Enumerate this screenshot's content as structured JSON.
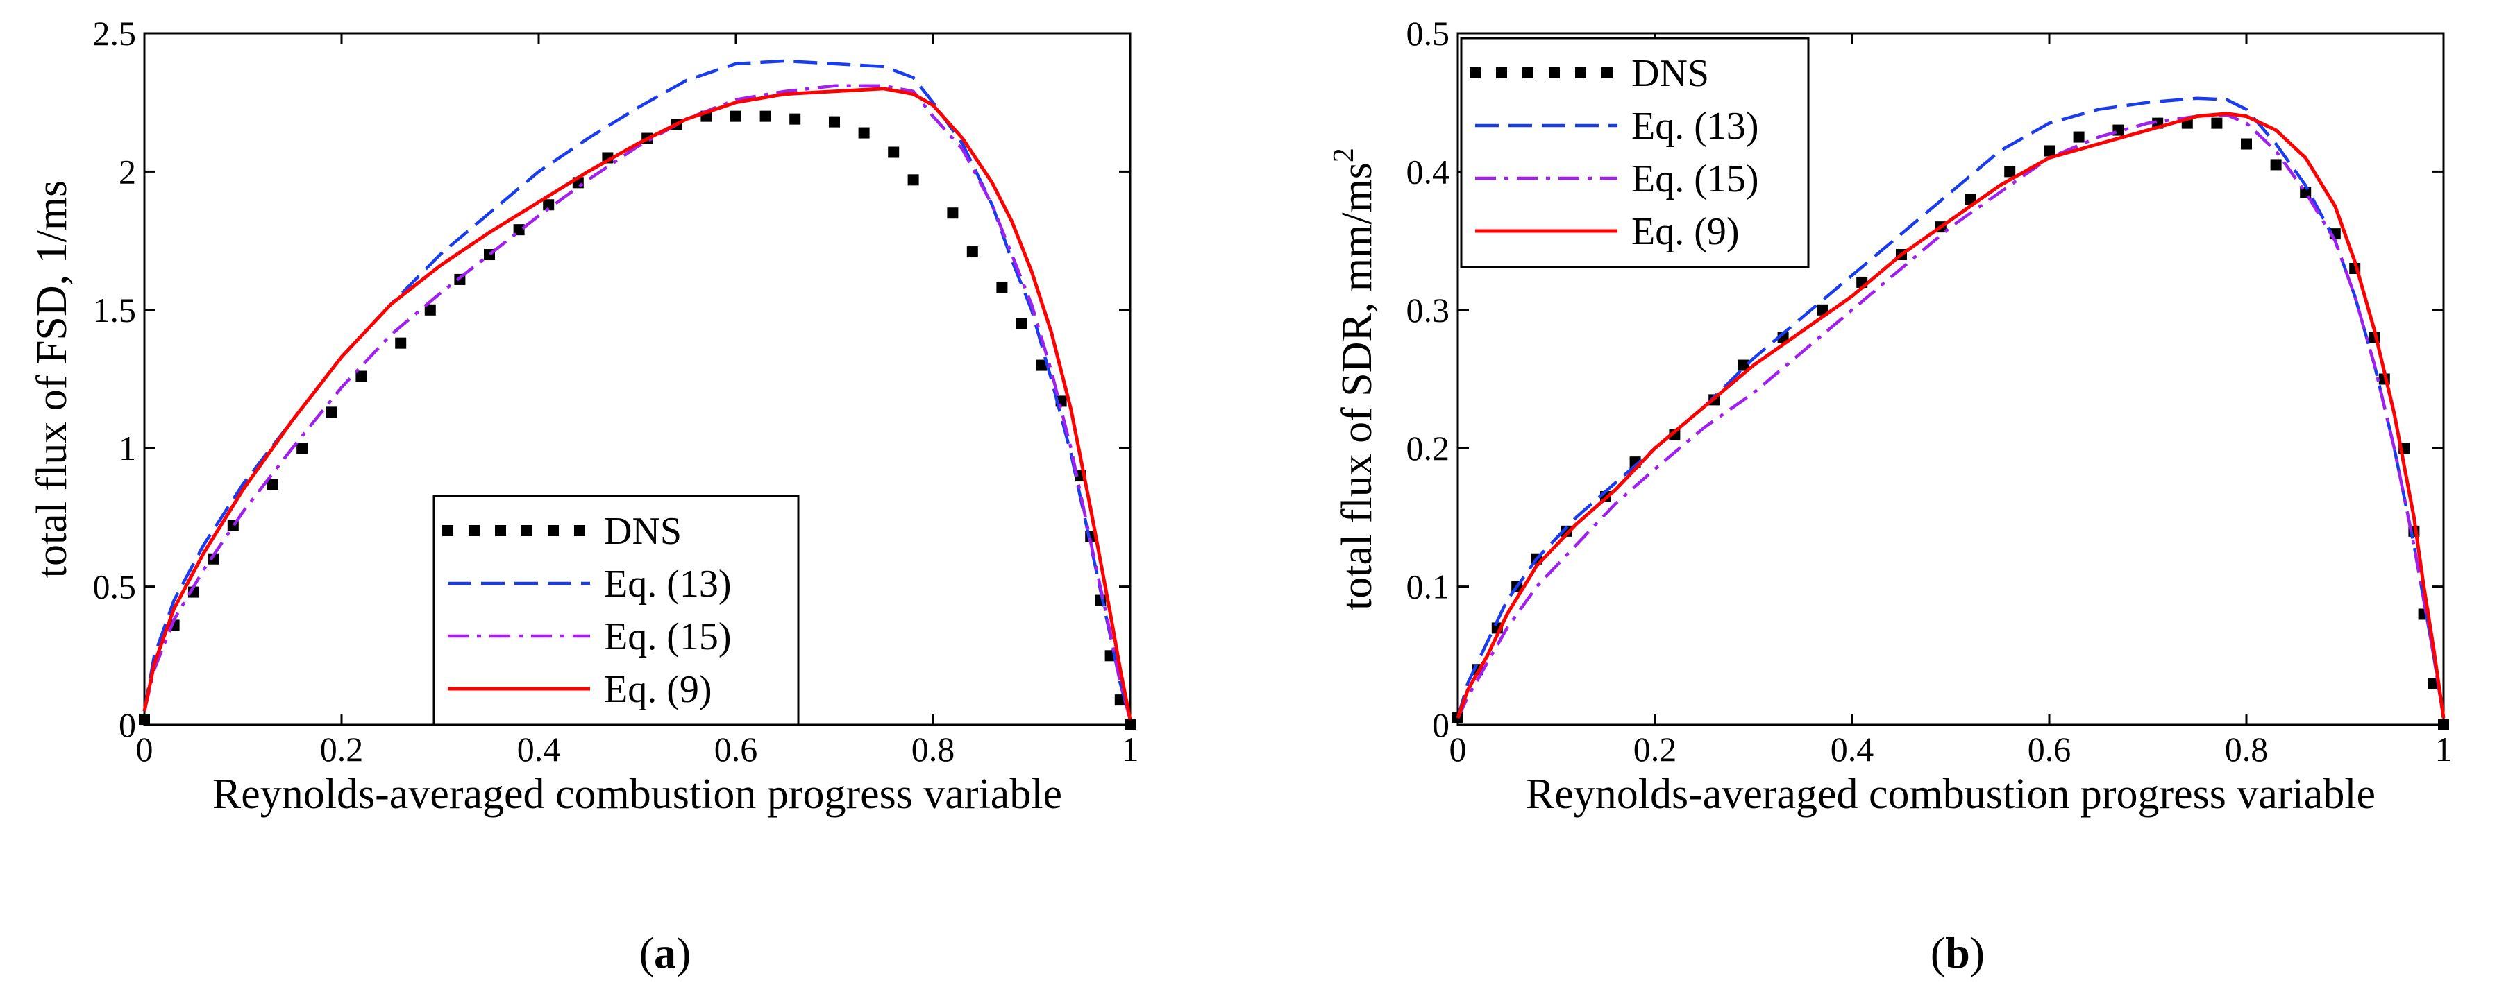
{
  "chart_data": [
    {
      "type": "line",
      "panel": "a",
      "xlabel": "Reynolds-averaged combustion progress variable",
      "ylabel": "total flux of FSD, 1/ms",
      "xlim": [
        0,
        1
      ],
      "ylim": [
        0,
        2.5
      ],
      "xticks": [
        0,
        0.2,
        0.4,
        0.6,
        0.8,
        1
      ],
      "xtick_labels": [
        "0",
        "0.2",
        "0.4",
        "0.6",
        "0.8",
        "1"
      ],
      "yticks": [
        0,
        0.5,
        1,
        1.5,
        2,
        2.5
      ],
      "ytick_labels": [
        "0",
        "0.5",
        "1",
        "1.5",
        "2",
        "2.5"
      ],
      "legend_position": "lower-center",
      "series": [
        {
          "name": "DNS",
          "style": "dots",
          "color": "#000000",
          "x": [
            0,
            0.03,
            0.05,
            0.07,
            0.09,
            0.13,
            0.16,
            0.19,
            0.22,
            0.26,
            0.29,
            0.32,
            0.35,
            0.38,
            0.41,
            0.44,
            0.47,
            0.51,
            0.54,
            0.57,
            0.6,
            0.63,
            0.66,
            0.7,
            0.73,
            0.76,
            0.78,
            0.82,
            0.84,
            0.87,
            0.89,
            0.91,
            0.93,
            0.95,
            0.96,
            0.97,
            0.98,
            0.99,
            1
          ],
          "y": [
            0.02,
            0.36,
            0.48,
            0.6,
            0.72,
            0.87,
            1.0,
            1.13,
            1.26,
            1.38,
            1.5,
            1.61,
            1.7,
            1.79,
            1.88,
            1.96,
            2.05,
            2.12,
            2.17,
            2.2,
            2.2,
            2.2,
            2.19,
            2.18,
            2.14,
            2.07,
            1.97,
            1.85,
            1.71,
            1.58,
            1.45,
            1.3,
            1.17,
            0.9,
            0.68,
            0.45,
            0.25,
            0.09,
            0.0
          ]
        },
        {
          "name": "Eq. (13)",
          "style": "dashed",
          "color": "#1a3cf0",
          "x": [
            0,
            0.01,
            0.03,
            0.06,
            0.1,
            0.15,
            0.2,
            0.25,
            0.3,
            0.35,
            0.4,
            0.45,
            0.5,
            0.55,
            0.6,
            0.65,
            0.7,
            0.75,
            0.78,
            0.8,
            0.83,
            0.86,
            0.88,
            0.9,
            0.92,
            0.94,
            0.96,
            0.98,
            0.99,
            1
          ],
          "y": [
            0.05,
            0.25,
            0.45,
            0.65,
            0.87,
            1.1,
            1.33,
            1.52,
            1.7,
            1.85,
            2.0,
            2.12,
            2.23,
            2.33,
            2.39,
            2.4,
            2.39,
            2.38,
            2.34,
            2.25,
            2.1,
            1.88,
            1.68,
            1.5,
            1.25,
            0.98,
            0.65,
            0.32,
            0.15,
            0.02
          ]
        },
        {
          "name": "Eq. (15)",
          "style": "dashdot",
          "color": "#a020f0",
          "x": [
            0,
            0.01,
            0.03,
            0.06,
            0.1,
            0.15,
            0.2,
            0.25,
            0.3,
            0.35,
            0.4,
            0.45,
            0.5,
            0.55,
            0.6,
            0.65,
            0.7,
            0.75,
            0.78,
            0.8,
            0.83,
            0.86,
            0.88,
            0.9,
            0.92,
            0.94,
            0.96,
            0.98,
            0.99,
            1
          ],
          "y": [
            0.05,
            0.2,
            0.38,
            0.56,
            0.77,
            1.0,
            1.22,
            1.41,
            1.56,
            1.7,
            1.84,
            1.97,
            2.09,
            2.19,
            2.26,
            2.29,
            2.31,
            2.31,
            2.29,
            2.2,
            2.08,
            1.88,
            1.7,
            1.52,
            1.28,
            1.0,
            0.66,
            0.33,
            0.15,
            0.02
          ]
        },
        {
          "name": "Eq. (9)",
          "style": "solid",
          "color": "#ff0000",
          "x": [
            0,
            0.01,
            0.03,
            0.06,
            0.1,
            0.15,
            0.2,
            0.25,
            0.3,
            0.35,
            0.4,
            0.45,
            0.5,
            0.55,
            0.6,
            0.65,
            0.7,
            0.75,
            0.78,
            0.8,
            0.83,
            0.86,
            0.88,
            0.9,
            0.92,
            0.94,
            0.96,
            0.98,
            0.99,
            1
          ],
          "y": [
            0.05,
            0.22,
            0.42,
            0.62,
            0.85,
            1.1,
            1.33,
            1.52,
            1.66,
            1.78,
            1.89,
            2.0,
            2.1,
            2.19,
            2.25,
            2.28,
            2.29,
            2.3,
            2.28,
            2.24,
            2.12,
            1.96,
            1.82,
            1.64,
            1.42,
            1.14,
            0.78,
            0.4,
            0.2,
            0.02
          ]
        }
      ],
      "legend": [
        "DNS",
        "Eq. (13)",
        "Eq. (15)",
        "Eq. (9)"
      ],
      "panel_label": "a"
    },
    {
      "type": "line",
      "panel": "b",
      "xlabel": "Reynolds-averaged combustion progress variable",
      "ylabel": "total flux of SDR, mm/ms",
      "ylabel_superscript": "2",
      "xlim": [
        0,
        1
      ],
      "ylim": [
        0,
        0.5
      ],
      "xticks": [
        0,
        0.2,
        0.4,
        0.6,
        0.8,
        1
      ],
      "xtick_labels": [
        "0",
        "0.2",
        "0.4",
        "0.6",
        "0.8",
        "1"
      ],
      "yticks": [
        0,
        0.1,
        0.2,
        0.3,
        0.4,
        0.5
      ],
      "ytick_labels": [
        "0",
        "0.1",
        "0.2",
        "0.3",
        "0.4",
        "0.5"
      ],
      "legend_position": "top-left",
      "series": [
        {
          "name": "DNS",
          "style": "dots",
          "color": "#000000",
          "x": [
            0,
            0.02,
            0.04,
            0.06,
            0.08,
            0.11,
            0.15,
            0.18,
            0.22,
            0.26,
            0.29,
            0.33,
            0.37,
            0.41,
            0.45,
            0.49,
            0.52,
            0.56,
            0.6,
            0.63,
            0.67,
            0.71,
            0.74,
            0.77,
            0.8,
            0.83,
            0.86,
            0.89,
            0.91,
            0.93,
            0.94,
            0.96,
            0.97,
            0.98,
            0.99,
            1
          ],
          "y": [
            0.005,
            0.04,
            0.07,
            0.1,
            0.12,
            0.14,
            0.165,
            0.19,
            0.21,
            0.235,
            0.26,
            0.28,
            0.3,
            0.32,
            0.34,
            0.36,
            0.38,
            0.4,
            0.415,
            0.425,
            0.43,
            0.435,
            0.435,
            0.435,
            0.42,
            0.405,
            0.385,
            0.355,
            0.33,
            0.28,
            0.25,
            0.2,
            0.14,
            0.08,
            0.03,
            0.0
          ]
        },
        {
          "name": "Eq. (13)",
          "style": "dashed",
          "color": "#1a3cf0",
          "x": [
            0,
            0.01,
            0.03,
            0.05,
            0.08,
            0.12,
            0.16,
            0.2,
            0.25,
            0.3,
            0.35,
            0.4,
            0.45,
            0.5,
            0.55,
            0.6,
            0.65,
            0.7,
            0.75,
            0.78,
            0.8,
            0.83,
            0.86,
            0.89,
            0.91,
            0.93,
            0.95,
            0.97,
            0.98,
            0.99,
            1
          ],
          "y": [
            0.005,
            0.03,
            0.06,
            0.09,
            0.12,
            0.15,
            0.175,
            0.2,
            0.23,
            0.265,
            0.295,
            0.325,
            0.355,
            0.385,
            0.415,
            0.435,
            0.445,
            0.45,
            0.453,
            0.452,
            0.445,
            0.42,
            0.39,
            0.35,
            0.31,
            0.26,
            0.2,
            0.13,
            0.09,
            0.05,
            0.005
          ]
        },
        {
          "name": "Eq. (15)",
          "style": "dashdot",
          "color": "#a020f0",
          "x": [
            0,
            0.01,
            0.03,
            0.05,
            0.08,
            0.12,
            0.16,
            0.2,
            0.25,
            0.3,
            0.35,
            0.4,
            0.45,
            0.5,
            0.55,
            0.6,
            0.65,
            0.7,
            0.75,
            0.78,
            0.8,
            0.83,
            0.86,
            0.89,
            0.91,
            0.93,
            0.95,
            0.97,
            0.98,
            0.99,
            1
          ],
          "y": [
            0.005,
            0.02,
            0.045,
            0.07,
            0.1,
            0.13,
            0.16,
            0.185,
            0.215,
            0.24,
            0.27,
            0.3,
            0.33,
            0.36,
            0.385,
            0.41,
            0.425,
            0.435,
            0.44,
            0.441,
            0.435,
            0.415,
            0.385,
            0.35,
            0.31,
            0.26,
            0.2,
            0.13,
            0.09,
            0.05,
            0.005
          ]
        },
        {
          "name": "Eq. (9)",
          "style": "solid",
          "color": "#ff0000",
          "x": [
            0,
            0.01,
            0.03,
            0.05,
            0.08,
            0.12,
            0.16,
            0.2,
            0.25,
            0.3,
            0.35,
            0.4,
            0.45,
            0.5,
            0.55,
            0.6,
            0.65,
            0.7,
            0.75,
            0.78,
            0.8,
            0.83,
            0.86,
            0.89,
            0.91,
            0.93,
            0.95,
            0.97,
            0.98,
            0.99,
            1
          ],
          "y": [
            0.005,
            0.025,
            0.05,
            0.08,
            0.115,
            0.145,
            0.17,
            0.2,
            0.23,
            0.26,
            0.285,
            0.31,
            0.34,
            0.365,
            0.39,
            0.41,
            0.42,
            0.43,
            0.44,
            0.442,
            0.44,
            0.43,
            0.41,
            0.375,
            0.335,
            0.285,
            0.225,
            0.15,
            0.1,
            0.055,
            0.005
          ]
        }
      ],
      "legend": [
        "DNS",
        "Eq. (13)",
        "Eq. (15)",
        "Eq. (9)"
      ],
      "panel_label": "b"
    }
  ]
}
